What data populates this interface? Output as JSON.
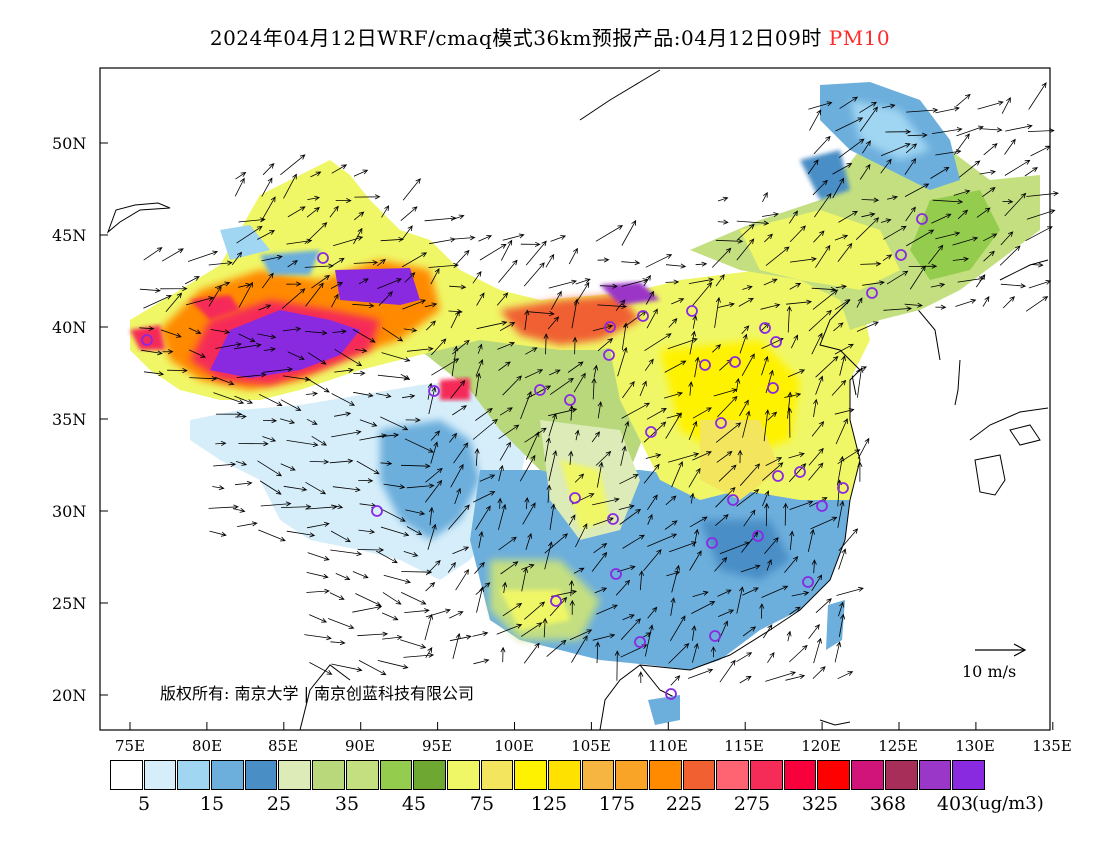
{
  "title": {
    "main": "2024年04月12日WRF/cmaq模式36km预报产品:04月12日09时",
    "field": "PM10"
  },
  "axes": {
    "lat_labels": [
      "50N",
      "45N",
      "40N",
      "35N",
      "30N",
      "25N",
      "20N"
    ],
    "lon_labels": [
      "75E",
      "80E",
      "85E",
      "90E",
      "95E",
      "100E",
      "105E",
      "110E",
      "115E",
      "120E",
      "125E",
      "130E",
      "135E"
    ],
    "lon_range": [
      73,
      135
    ],
    "lat_range": [
      18,
      54
    ]
  },
  "colorbar": {
    "colors": [
      "#ffffff",
      "#d6eefa",
      "#a0d6f2",
      "#6caedc",
      "#4a8ec6",
      "#dcebb8",
      "#b9d87c",
      "#c4df80",
      "#94cc4e",
      "#6ea832",
      "#f0f766",
      "#f3e55e",
      "#fff200",
      "#ffe100",
      "#f6b541",
      "#f9a427",
      "#ff8a00",
      "#f06030",
      "#ff6472",
      "#f52c58",
      "#f8003c",
      "#ff0000",
      "#d0147a",
      "#a82e5a",
      "#9a36c8",
      "#8a2ae0"
    ],
    "labels": [
      "5",
      "15",
      "25",
      "35",
      "45",
      "75",
      "125",
      "175",
      "225",
      "275",
      "325",
      "368",
      "403"
    ],
    "unit": "(ug/m3)"
  },
  "copyright": "版权所有: 南京大学 | 南京创蓝科技有限公司",
  "wind_scale": {
    "label": "10 m/s"
  },
  "stations_shown": 40
}
